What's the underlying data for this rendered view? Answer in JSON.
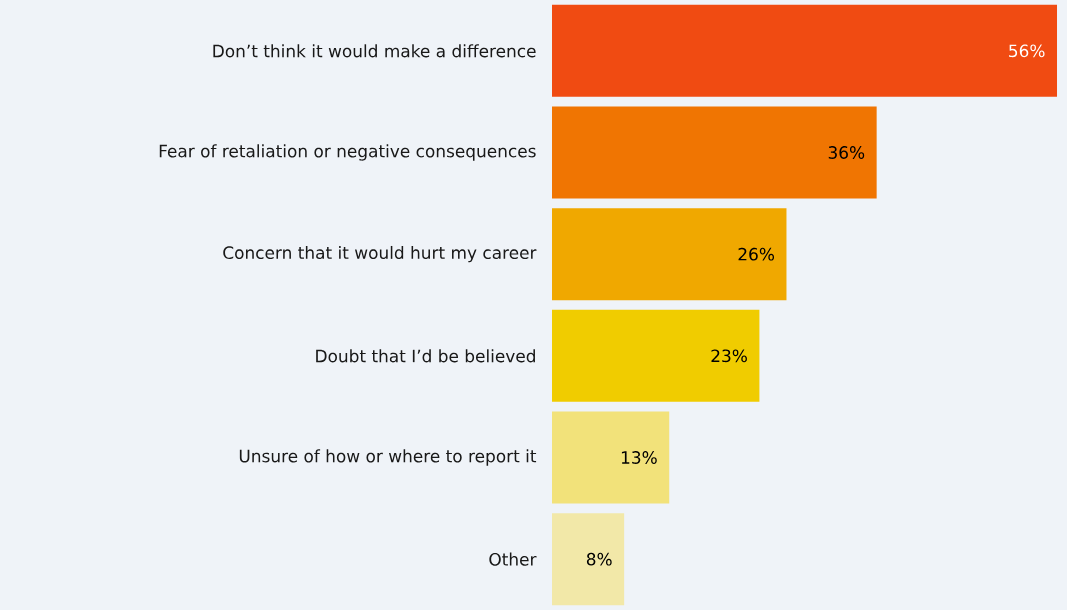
{
  "chart_data": {
    "type": "bar",
    "orientation": "horizontal",
    "categories": [
      "Don’t think it would make a difference",
      "Fear of retaliation or negative consequences",
      "Concern that it would hurt my career",
      "Doubt that I’d be believed",
      "Unsure of how or where to report it",
      "Other"
    ],
    "values": [
      56,
      36,
      26,
      23,
      13,
      8
    ],
    "value_labels": [
      "56%",
      "36%",
      "26%",
      "23%",
      "13%",
      "8%"
    ],
    "colors": [
      "#f04b12",
      "#f07502",
      "#f0a800",
      "#f0cc00",
      "#f2e27a",
      "#f2e8a8"
    ]
  }
}
